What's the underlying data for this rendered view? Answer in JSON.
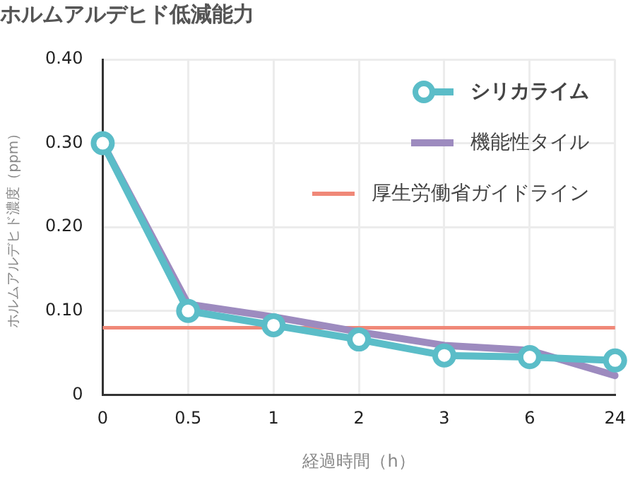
{
  "chart_data": {
    "type": "line",
    "title": "ホルムアルデヒド低減能力",
    "xlabel": "経過時間（h）",
    "ylabel": "ホルムアルデヒド濃度（ppm）",
    "categories": [
      "0",
      "0.5",
      "1",
      "2",
      "3",
      "6",
      "24"
    ],
    "series": [
      {
        "name": "シリカライム",
        "color": "#5bbdc8",
        "marker": "circle",
        "values": [
          0.3,
          0.1,
          0.083,
          0.066,
          0.047,
          0.045,
          0.041
        ]
      },
      {
        "name": "機能性タイル",
        "color": "#9d8bbf",
        "marker": "none",
        "values": [
          0.3,
          0.108,
          0.093,
          0.075,
          0.059,
          0.053,
          0.023
        ]
      }
    ],
    "ref_lines": [
      {
        "axis": "y",
        "value": 0.08,
        "label": "厚生労働省ガイドライン",
        "color": "#f08878"
      }
    ],
    "ylim": [
      0,
      0.4
    ],
    "yticks": [
      0,
      {
        "value": 0.1,
        "label": "0.10"
      },
      {
        "value": 0.2,
        "label": "0.20"
      },
      {
        "value": 0.3,
        "label": "0.30"
      },
      {
        "value": 0.4,
        "label": "0.40"
      }
    ],
    "grid": true,
    "legend": "top right",
    "line_style": "solid"
  }
}
